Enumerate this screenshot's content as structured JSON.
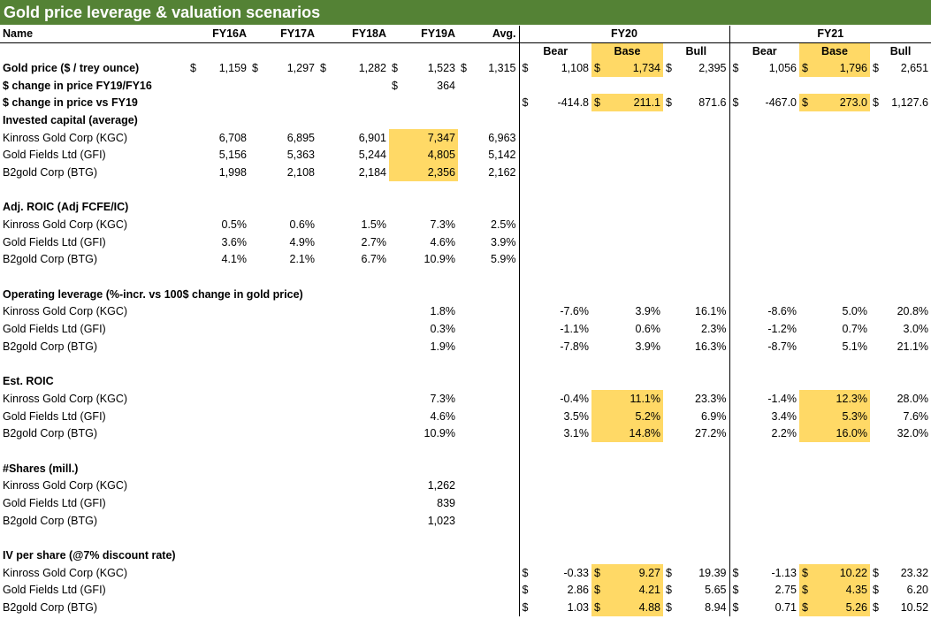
{
  "title": "Gold price leverage & valuation scenarios",
  "header": {
    "name": "Name",
    "years": [
      "FY16A",
      "FY17A",
      "FY18A",
      "FY19A"
    ],
    "avg": "Avg.",
    "fy20": "FY20",
    "fy21": "FY21",
    "scenarios": [
      "Bear",
      "Base",
      "Bull"
    ]
  },
  "currency": "$",
  "gold_price": {
    "label": "Gold price ($ / trey ounce)",
    "hist": [
      "1,159",
      "1,297",
      "1,282",
      "1,523"
    ],
    "avg": "1,315",
    "fy20": [
      "1,108",
      "1,734",
      "2,395"
    ],
    "fy21": [
      "1,056",
      "1,796",
      "2,651"
    ]
  },
  "change_fy19_fy16": {
    "label": "$ change in price FY19/FY16",
    "value": "364"
  },
  "change_vs_fy19": {
    "label": "$ change in price vs FY19",
    "fy20": [
      "-414.8",
      "211.1",
      "871.6"
    ],
    "fy21": [
      "-467.0",
      "273.0",
      "1,127.6"
    ]
  },
  "invested_capital": {
    "label": "Invested capital (average)",
    "rows": [
      {
        "name": "Kinross Gold Corp (KGC)",
        "hist": [
          "6,708",
          "6,895",
          "6,901",
          "7,347"
        ],
        "avg": "6,963"
      },
      {
        "name": "Gold Fields Ltd (GFI)",
        "hist": [
          "5,156",
          "5,363",
          "5,244",
          "4,805"
        ],
        "avg": "5,142"
      },
      {
        "name": "B2gold Corp (BTG)",
        "hist": [
          "1,998",
          "2,108",
          "2,184",
          "2,356"
        ],
        "avg": "2,162"
      }
    ]
  },
  "adj_roic": {
    "label": "Adj. ROIC (Adj FCFE/IC)",
    "rows": [
      {
        "name": "Kinross Gold Corp (KGC)",
        "hist": [
          "0.5%",
          "0.6%",
          "1.5%",
          "7.3%"
        ],
        "avg": "2.5%"
      },
      {
        "name": "Gold Fields Ltd (GFI)",
        "hist": [
          "3.6%",
          "4.9%",
          "2.7%",
          "4.6%"
        ],
        "avg": "3.9%"
      },
      {
        "name": "B2gold Corp (BTG)",
        "hist": [
          "4.1%",
          "2.1%",
          "6.7%",
          "10.9%"
        ],
        "avg": "5.9%"
      }
    ]
  },
  "operating_leverage": {
    "label": "Operating leverage (%-incr. vs 100$ change in gold price)",
    "rows": [
      {
        "name": "Kinross Gold Corp (KGC)",
        "fy19": "1.8%",
        "fy20": [
          "-7.6%",
          "3.9%",
          "16.1%"
        ],
        "fy21": [
          "-8.6%",
          "5.0%",
          "20.8%"
        ]
      },
      {
        "name": "Gold Fields Ltd (GFI)",
        "fy19": "0.3%",
        "fy20": [
          "-1.1%",
          "0.6%",
          "2.3%"
        ],
        "fy21": [
          "-1.2%",
          "0.7%",
          "3.0%"
        ]
      },
      {
        "name": "B2gold Corp (BTG)",
        "fy19": "1.9%",
        "fy20": [
          "-7.8%",
          "3.9%",
          "16.3%"
        ],
        "fy21": [
          "-8.7%",
          "5.1%",
          "21.1%"
        ]
      }
    ]
  },
  "est_roic": {
    "label": "Est. ROIC",
    "rows": [
      {
        "name": "Kinross Gold Corp (KGC)",
        "fy19": "7.3%",
        "fy20": [
          "-0.4%",
          "11.1%",
          "23.3%"
        ],
        "fy21": [
          "-1.4%",
          "12.3%",
          "28.0%"
        ]
      },
      {
        "name": "Gold Fields Ltd (GFI)",
        "fy19": "4.6%",
        "fy20": [
          "3.5%",
          "5.2%",
          "6.9%"
        ],
        "fy21": [
          "3.4%",
          "5.3%",
          "7.6%"
        ]
      },
      {
        "name": "B2gold Corp (BTG)",
        "fy19": "10.9%",
        "fy20": [
          "3.1%",
          "14.8%",
          "27.2%"
        ],
        "fy21": [
          "2.2%",
          "16.0%",
          "32.0%"
        ]
      }
    ]
  },
  "shares": {
    "label": "#Shares (mill.)",
    "rows": [
      {
        "name": "Kinross Gold Corp (KGC)",
        "fy19": "1,262"
      },
      {
        "name": "Gold Fields Ltd (GFI)",
        "fy19": "839"
      },
      {
        "name": "B2gold Corp (BTG)",
        "fy19": "1,023"
      }
    ]
  },
  "iv_per_share": {
    "label": "IV per share (@7% discount rate)",
    "rows": [
      {
        "name": "Kinross Gold Corp (KGC)",
        "fy20": [
          "-0.33",
          "9.27",
          "19.39"
        ],
        "fy21": [
          "-1.13",
          "10.22",
          "23.32"
        ]
      },
      {
        "name": "Gold Fields Ltd (GFI)",
        "fy20": [
          "2.86",
          "4.21",
          "5.65"
        ],
        "fy21": [
          "2.75",
          "4.35",
          "6.20"
        ]
      },
      {
        "name": "B2gold Corp (BTG)",
        "fy20": [
          "1.03",
          "4.88",
          "8.94"
        ],
        "fy21": [
          "0.71",
          "5.26",
          "10.52"
        ]
      }
    ]
  }
}
